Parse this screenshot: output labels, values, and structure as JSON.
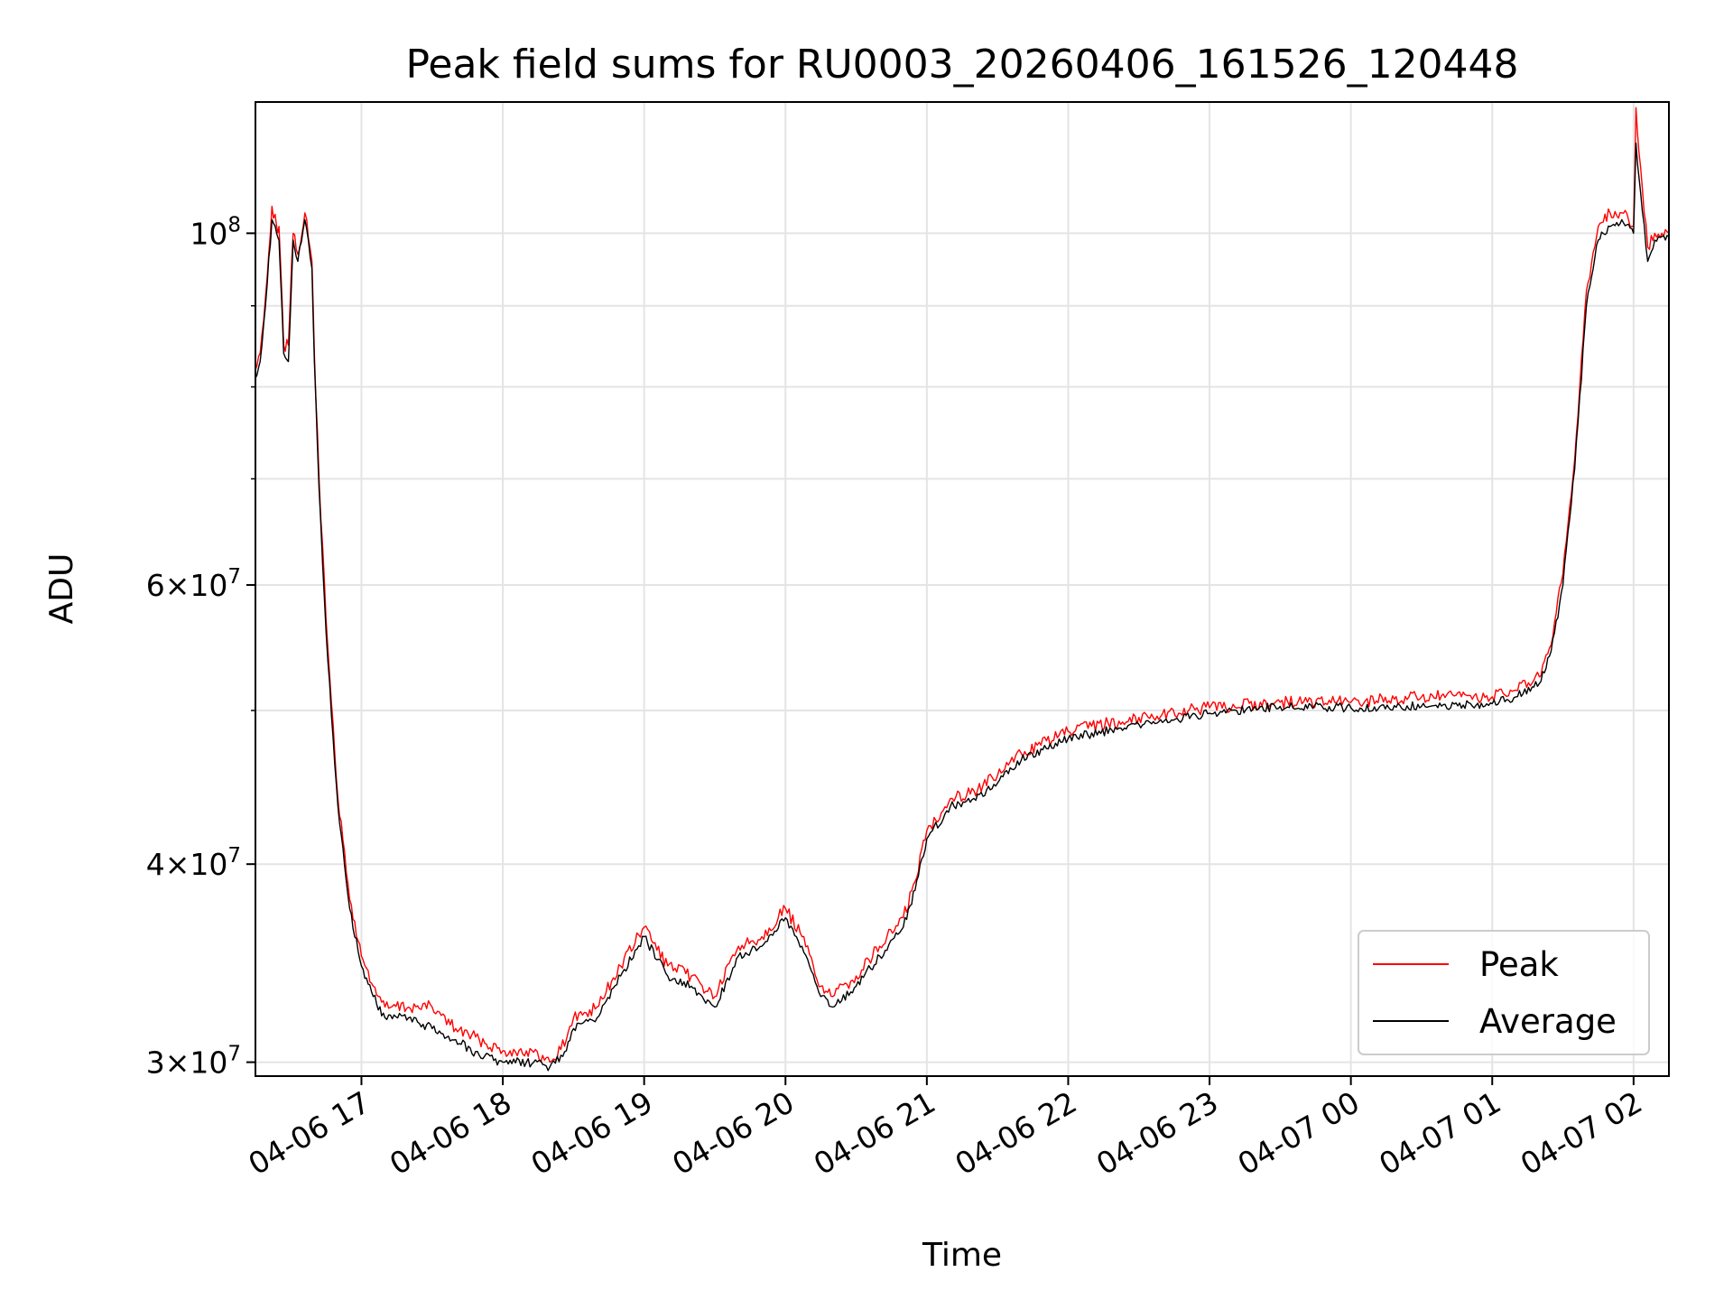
{
  "chart_data": {
    "type": "line",
    "title": "Peak field sums for RU0003_20260406_161526_120448",
    "xlabel": "Time",
    "ylabel": "ADU",
    "x_start": "2026-04-06 16:15",
    "x_end": "2026-04-07 02:15",
    "x_ticks": [
      "04-06 17",
      "04-06 18",
      "04-06 19",
      "04-06 20",
      "04-06 21",
      "04-06 22",
      "04-06 23",
      "04-07 00",
      "04-07 01",
      "04-07 02"
    ],
    "y_scale": "log",
    "ylim": [
      29400000,
      121000000
    ],
    "y_ticks": [
      {
        "value": 30000000,
        "mant": "3",
        "exp": "7"
      },
      {
        "value": 40000000,
        "mant": "4",
        "exp": "7"
      },
      {
        "value": 60000000,
        "mant": "6",
        "exp": "7"
      },
      {
        "value": 100000000,
        "mant": "",
        "exp": "8"
      }
    ],
    "grid": true,
    "legend_position": "lower-right",
    "series": [
      {
        "name": "Peak",
        "color": "#ff0000"
      },
      {
        "name": "Average",
        "color": "#000000"
      }
    ],
    "x": [
      "2026-04-06 16:15",
      "2026-04-06 16:17",
      "2026-04-06 16:20",
      "2026-04-06 16:22",
      "2026-04-06 16:24",
      "2026-04-06 16:25",
      "2026-04-06 16:27",
      "2026-04-06 16:29",
      "2026-04-06 16:31",
      "2026-04-06 16:33",
      "2026-04-06 16:36",
      "2026-04-06 16:39",
      "2026-04-06 16:40",
      "2026-04-06 16:42",
      "2026-04-06 16:45",
      "2026-04-06 16:48",
      "2026-04-06 16:50",
      "2026-04-06 16:55",
      "2026-04-06 17:00",
      "2026-04-06 17:05",
      "2026-04-06 17:10",
      "2026-04-06 17:20",
      "2026-04-06 17:30",
      "2026-04-06 17:40",
      "2026-04-06 17:50",
      "2026-04-06 18:00",
      "2026-04-06 18:10",
      "2026-04-06 18:20",
      "2026-04-06 18:27",
      "2026-04-06 18:30",
      "2026-04-06 18:40",
      "2026-04-06 18:50",
      "2026-04-06 19:00",
      "2026-04-06 19:10",
      "2026-04-06 19:20",
      "2026-04-06 19:30",
      "2026-04-06 19:40",
      "2026-04-06 19:50",
      "2026-04-06 20:00",
      "2026-04-06 20:07",
      "2026-04-06 20:15",
      "2026-04-06 20:20",
      "2026-04-06 20:30",
      "2026-04-06 20:40",
      "2026-04-06 20:50",
      "2026-04-06 20:55",
      "2026-04-06 21:00",
      "2026-04-06 21:10",
      "2026-04-06 21:20",
      "2026-04-06 21:30",
      "2026-04-06 21:40",
      "2026-04-06 22:00",
      "2026-04-06 22:30",
      "2026-04-06 23:00",
      "2026-04-06 23:30",
      "2026-04-07 00:00",
      "2026-04-07 00:30",
      "2026-04-07 01:00",
      "2026-04-07 01:10",
      "2026-04-07 01:20",
      "2026-04-07 01:25",
      "2026-04-07 01:30",
      "2026-04-07 01:35",
      "2026-04-07 01:40",
      "2026-04-07 01:45",
      "2026-04-07 01:50",
      "2026-04-07 01:55",
      "2026-04-07 02:00",
      "2026-04-07 02:01",
      "2026-04-07 02:03",
      "2026-04-07 02:06",
      "2026-04-07 02:09",
      "2026-04-07 02:12",
      "2026-04-07 02:15"
    ],
    "peak": [
      82000000,
      84000000,
      94000000,
      104000000,
      101000000,
      101000000,
      85000000,
      85000000,
      100000000,
      97000000,
      103000000,
      96000000,
      84000000,
      70000000,
      57000000,
      49000000,
      44000000,
      38000000,
      35000000,
      33500000,
      32500000,
      32500000,
      32500000,
      31500000,
      31000000,
      30500000,
      30500000,
      30000000,
      31000000,
      32000000,
      32500000,
      34500000,
      36500000,
      34500000,
      34000000,
      33000000,
      35500000,
      36000000,
      37500000,
      36000000,
      33500000,
      33000000,
      34000000,
      35500000,
      37000000,
      39000000,
      42000000,
      44000000,
      44500000,
      45500000,
      47000000,
      48500000,
      49500000,
      50200000,
      50600000,
      50600000,
      51000000,
      51000000,
      51500000,
      52500000,
      55000000,
      61000000,
      72000000,
      92000000,
      101000000,
      103000000,
      103000000,
      101000000,
      120000000,
      110000000,
      98000000,
      100000000,
      100000000,
      100000000
    ],
    "average": [
      81000000,
      83000000,
      93000000,
      102000000,
      100000000,
      99000000,
      84000000,
      83000000,
      99000000,
      96000000,
      102000000,
      95000000,
      83000000,
      69000000,
      56000000,
      48000000,
      43500000,
      37500000,
      34500000,
      33000000,
      32000000,
      32000000,
      31500000,
      31000000,
      30300000,
      30000000,
      30000000,
      29800000,
      30500000,
      31500000,
      32000000,
      34000000,
      36000000,
      34000000,
      33500000,
      32500000,
      35000000,
      35500000,
      37000000,
      35500000,
      33000000,
      32500000,
      33500000,
      35000000,
      36500000,
      38500000,
      41500000,
      43500000,
      44000000,
      45000000,
      46500000,
      48000000,
      49000000,
      49800000,
      50300000,
      50200000,
      50300000,
      50500000,
      51000000,
      52000000,
      54500000,
      60000000,
      71000000,
      90000000,
      99000000,
      101000000,
      102000000,
      100000000,
      114000000,
      106000000,
      96000000,
      99000000,
      99500000,
      99500000
    ]
  }
}
